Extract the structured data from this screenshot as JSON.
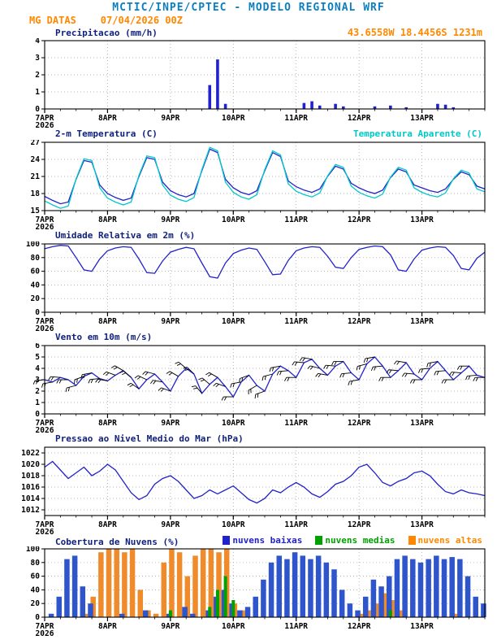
{
  "header": {
    "title": "MCTIC/INPE/CPTEC - MODELO REGIONAL WRF",
    "title_color": "#0b7fc0",
    "station": "MG DATAS",
    "run": "07/04/2026 00Z",
    "coords": "43.6558W 18.4456S 1231m",
    "accent_color": "#ff8800"
  },
  "x_axis": {
    "min": 0,
    "max": 168,
    "minor_step": 6,
    "major_ticks": [
      {
        "h": 0,
        "label": "7APR",
        "sub": "2026"
      },
      {
        "h": 24,
        "label": "8APR"
      },
      {
        "h": 48,
        "label": "9APR"
      },
      {
        "h": 72,
        "label": "10APR"
      },
      {
        "h": 96,
        "label": "11APR"
      },
      {
        "h": 120,
        "label": "12APR"
      },
      {
        "h": 144,
        "label": "13APR"
      }
    ]
  },
  "chart_data": [
    {
      "id": "precipitation",
      "title": "Precipitacao (mm/h)",
      "type": "bar",
      "ylim": [
        0,
        4
      ],
      "yticks": [
        0,
        1,
        2,
        3,
        4
      ],
      "bar_color": "#2222cc",
      "values": [
        0,
        0,
        0,
        0,
        0,
        0,
        0,
        0,
        0,
        0,
        0,
        0,
        0,
        0,
        0,
        0,
        0,
        0,
        0,
        0,
        0,
        1.4,
        2.9,
        0.3,
        0,
        0,
        0,
        0,
        0,
        0,
        0,
        0,
        0,
        0.35,
        0.45,
        0.2,
        0,
        0.3,
        0.15,
        0,
        0,
        0,
        0.15,
        0,
        0.2,
        0,
        0.1,
        0,
        0,
        0,
        0.3,
        0.25,
        0.1,
        0,
        0,
        0,
        0
      ]
    },
    {
      "id": "temperature-2m",
      "title": "2-m Temperatura (C)",
      "type": "line",
      "legend": {
        "label": "Temperatura Aparente (C)",
        "color": "#00c8c8"
      },
      "ylim": [
        15,
        27
      ],
      "yticks": [
        15,
        18,
        21,
        24,
        27
      ],
      "series": [
        {
          "name": "2-m Temperatura",
          "color": "#2222cc",
          "values": [
            17.5,
            16.8,
            16.2,
            16.5,
            20.5,
            23.8,
            23.5,
            19.5,
            18.0,
            17.3,
            16.8,
            17.2,
            21.0,
            24.3,
            24.0,
            20.0,
            18.5,
            17.8,
            17.4,
            18.0,
            22.0,
            25.8,
            25.2,
            20.5,
            19.0,
            18.2,
            17.8,
            18.5,
            22.0,
            25.2,
            24.5,
            20.2,
            19.2,
            18.6,
            18.2,
            18.8,
            21.0,
            22.8,
            22.3,
            19.8,
            19.0,
            18.4,
            18.0,
            18.6,
            20.8,
            22.3,
            21.8,
            19.5,
            19.0,
            18.5,
            18.2,
            18.8,
            20.5,
            21.8,
            21.3,
            19.3,
            18.8
          ]
        },
        {
          "name": "Temperatura Aparente",
          "color": "#00c8c8",
          "values": [
            16.7,
            16.0,
            15.4,
            15.8,
            20.6,
            24.1,
            23.8,
            19.0,
            17.2,
            16.5,
            16.0,
            16.5,
            21.2,
            24.6,
            24.3,
            19.5,
            17.7,
            17.0,
            16.6,
            17.3,
            22.2,
            26.1,
            25.5,
            20.0,
            18.2,
            17.4,
            17.0,
            17.8,
            22.2,
            25.5,
            24.8,
            19.7,
            18.4,
            17.8,
            17.4,
            18.1,
            21.1,
            23.1,
            22.6,
            19.3,
            18.2,
            17.6,
            17.2,
            17.9,
            20.9,
            22.6,
            22.1,
            19.0,
            18.2,
            17.7,
            17.4,
            18.1,
            20.6,
            22.1,
            21.6,
            18.8,
            18.3
          ]
        }
      ]
    },
    {
      "id": "relative-humidity-2m",
      "title": "Umidade Relativa em 2m (%)",
      "type": "line",
      "ylim": [
        0,
        100
      ],
      "yticks": [
        0,
        20,
        40,
        60,
        80,
        100
      ],
      "series": [
        {
          "name": "Umidade Relativa",
          "color": "#2222cc",
          "values": [
            93,
            96,
            98,
            97,
            80,
            62,
            60,
            78,
            90,
            94,
            96,
            95,
            78,
            58,
            57,
            75,
            88,
            92,
            95,
            93,
            72,
            52,
            50,
            72,
            86,
            91,
            94,
            92,
            74,
            55,
            56,
            76,
            90,
            94,
            96,
            95,
            82,
            66,
            64,
            80,
            92,
            95,
            97,
            96,
            84,
            62,
            60,
            78,
            91,
            94,
            96,
            95,
            83,
            64,
            62,
            79,
            88
          ]
        }
      ]
    },
    {
      "id": "wind-10m",
      "title": "Vento em 10m (m/s)",
      "type": "wind",
      "ylim": [
        0,
        6
      ],
      "yticks": [
        0,
        1,
        2,
        3,
        4,
        5,
        6
      ],
      "barb_color": "#000000",
      "barb_dirs": [
        185,
        190,
        175,
        180,
        195,
        200,
        190,
        185,
        170,
        160,
        150,
        140,
        145,
        155,
        165,
        170,
        160,
        150,
        140,
        135,
        130,
        140,
        150,
        160,
        180,
        190,
        200,
        210,
        200,
        195,
        190,
        185,
        180,
        175,
        170,
        165,
        170,
        175,
        180,
        185,
        190,
        195,
        190,
        185,
        180,
        175,
        170,
        175,
        180,
        185,
        190,
        185,
        180,
        175,
        180,
        185,
        180
      ],
      "series": [
        {
          "name": "Vento 10m",
          "color": "#2222cc",
          "values": [
            3.0,
            2.8,
            3.2,
            3.0,
            2.5,
            3.3,
            3.6,
            3.1,
            2.9,
            3.4,
            3.8,
            3.2,
            2.2,
            3.0,
            3.5,
            2.8,
            2.0,
            3.3,
            4.0,
            3.5,
            1.8,
            2.6,
            3.2,
            2.4,
            1.5,
            2.8,
            3.4,
            2.5,
            2.0,
            3.5,
            4.2,
            3.8,
            3.2,
            4.5,
            4.8,
            4.0,
            3.4,
            4.2,
            4.6,
            3.6,
            3.0,
            4.4,
            5.0,
            4.2,
            3.2,
            3.8,
            4.5,
            3.5,
            3.0,
            4.0,
            4.6,
            3.8,
            3.0,
            3.6,
            4.2,
            3.4,
            3.2
          ]
        }
      ]
    },
    {
      "id": "mean-sea-level-pressure",
      "title": "Pressao ao Nivel Medio do Mar (hPa)",
      "type": "line",
      "ylim": [
        1011,
        1023
      ],
      "yticks": [
        1012,
        1014,
        1016,
        1018,
        1020,
        1022
      ],
      "series": [
        {
          "name": "Pressao",
          "color": "#2222cc",
          "values": [
            1019.5,
            1020.5,
            1019.0,
            1017.5,
            1018.5,
            1019.5,
            1018.0,
            1018.8,
            1020.0,
            1019.0,
            1017.0,
            1015.0,
            1013.8,
            1014.5,
            1016.5,
            1017.5,
            1018.0,
            1017.0,
            1015.5,
            1014.0,
            1014.5,
            1015.5,
            1014.8,
            1015.5,
            1016.2,
            1015.0,
            1013.8,
            1013.2,
            1014.0,
            1015.5,
            1015.0,
            1016.0,
            1016.8,
            1016.0,
            1014.8,
            1014.2,
            1015.2,
            1016.5,
            1017.0,
            1018.0,
            1019.5,
            1020.0,
            1018.5,
            1016.8,
            1016.2,
            1017.0,
            1017.5,
            1018.5,
            1018.8,
            1018.0,
            1016.5,
            1015.2,
            1014.8,
            1015.5,
            1015.0,
            1014.8,
            1014.5
          ]
        }
      ]
    },
    {
      "id": "cloud-cover",
      "title": "Cobertura de Nuvens (%)",
      "type": "cloudbar",
      "ylim": [
        0,
        100
      ],
      "yticks": [
        0,
        20,
        40,
        60,
        80,
        100
      ],
      "legend": [
        {
          "label": "nuvens baixas",
          "color": "#2222cc"
        },
        {
          "label": "nuvens medias",
          "color": "#00a000"
        },
        {
          "label": "nuvens altas",
          "color": "#ff8800"
        }
      ],
      "series": [
        {
          "name": "nuvens baixas",
          "color": "#2f55cc",
          "values": [
            0,
            5,
            30,
            85,
            90,
            45,
            20,
            0,
            0,
            0,
            5,
            0,
            0,
            10,
            0,
            0,
            5,
            0,
            15,
            5,
            0,
            10,
            30,
            40,
            20,
            10,
            15,
            30,
            55,
            80,
            90,
            85,
            95,
            90,
            85,
            90,
            80,
            70,
            40,
            20,
            10,
            30,
            55,
            45,
            60,
            85,
            90,
            85,
            80,
            85,
            90,
            85,
            88,
            85,
            60,
            30,
            20
          ]
        },
        {
          "name": "nuvens medias",
          "color": "#00a000",
          "values": [
            0,
            0,
            0,
            0,
            0,
            0,
            0,
            0,
            0,
            0,
            0,
            0,
            0,
            0,
            0,
            0,
            10,
            0,
            0,
            0,
            0,
            15,
            40,
            60,
            25,
            0,
            0,
            0,
            0,
            0,
            0,
            0,
            0,
            0,
            0,
            0,
            0,
            0,
            0,
            0,
            0,
            0,
            0,
            0,
            10,
            0,
            0,
            0,
            0,
            0,
            0,
            0,
            0,
            0,
            0,
            0,
            0
          ]
        },
        {
          "name": "nuvens altas",
          "color": "#ef8b2a",
          "values": [
            0,
            0,
            0,
            0,
            0,
            5,
            30,
            95,
            100,
            100,
            95,
            100,
            40,
            10,
            5,
            80,
            100,
            95,
            60,
            90,
            100,
            100,
            95,
            100,
            20,
            10,
            0,
            0,
            0,
            0,
            0,
            0,
            0,
            0,
            0,
            0,
            0,
            0,
            0,
            0,
            5,
            10,
            20,
            35,
            25,
            10,
            0,
            0,
            0,
            0,
            0,
            0,
            5,
            0,
            0,
            0,
            0
          ]
        }
      ]
    }
  ]
}
